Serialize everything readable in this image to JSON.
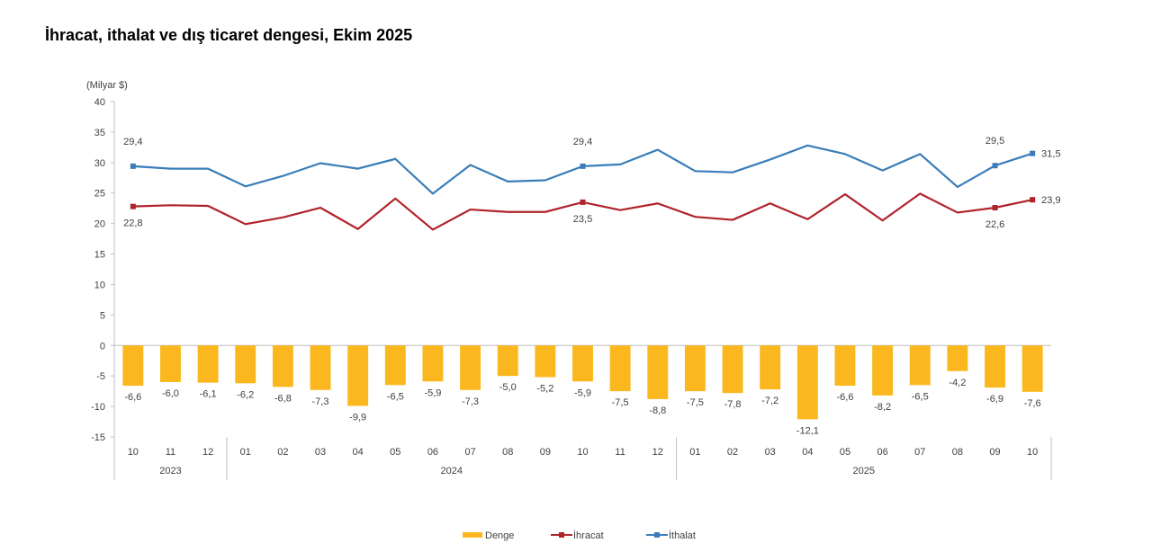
{
  "chart_data": {
    "type": "bar+line",
    "title": "İhracat, ithalat ve dış ticaret dengesi, Ekim 2025",
    "unit_label": "(Milyar $)",
    "ylim": [
      -15,
      40
    ],
    "yticks": [
      40,
      35,
      30,
      25,
      20,
      15,
      10,
      5,
      0,
      -5,
      -10,
      -15
    ],
    "grid": false,
    "legend_position": "bottom",
    "categories": [
      "10",
      "11",
      "12",
      "01",
      "02",
      "03",
      "04",
      "05",
      "06",
      "07",
      "08",
      "09",
      "10",
      "11",
      "12",
      "01",
      "02",
      "03",
      "04",
      "05",
      "06",
      "07",
      "08",
      "09",
      "10"
    ],
    "year_groups": [
      {
        "label": "2023",
        "count": 3
      },
      {
        "label": "2024",
        "count": 12
      },
      {
        "label": "2025",
        "count": 10
      }
    ],
    "series": [
      {
        "name": "Denge",
        "kind": "bar",
        "color": "#FBB81E",
        "values": [
          -6.6,
          -6.0,
          -6.1,
          -6.2,
          -6.8,
          -7.3,
          -9.9,
          -6.5,
          -5.9,
          -7.3,
          -5.0,
          -5.2,
          -5.9,
          -7.5,
          -8.8,
          -7.5,
          -7.8,
          -7.2,
          -12.1,
          -6.6,
          -8.2,
          -6.5,
          -4.2,
          -6.9,
          -7.6
        ],
        "labels": [
          "-6,6",
          "-6,0",
          "-6,1",
          "-6,2",
          "-6,8",
          "-7,3",
          "-9,9",
          "-6,5",
          "-5,9",
          "-7,3",
          "-5,0",
          "-5,2",
          "-5,9",
          "-7,5",
          "-8,8",
          "-7,5",
          "-7,8",
          "-7,2",
          "-12,1",
          "-6,6",
          "-8,2",
          "-6,5",
          "-4,2",
          "-6,9",
          "-7,6"
        ]
      },
      {
        "name": "İhracat",
        "kind": "line",
        "color": "#B0232A",
        "values": [
          22.8,
          23.0,
          22.9,
          19.9,
          21.0,
          22.6,
          19.1,
          24.1,
          19.0,
          22.3,
          21.9,
          21.9,
          23.5,
          22.2,
          23.3,
          21.1,
          20.6,
          23.3,
          20.7,
          24.8,
          20.5,
          24.9,
          21.8,
          22.6,
          23.9
        ],
        "point_labels": [
          {
            "index": 0,
            "text": "22,8"
          },
          {
            "index": 12,
            "text": "23,5"
          },
          {
            "index": 23,
            "text": "22,6"
          },
          {
            "index": 24,
            "text": "23,9"
          }
        ]
      },
      {
        "name": "İthalat",
        "kind": "line",
        "color": "#3A7DB8",
        "values": [
          29.4,
          29.0,
          29.0,
          26.1,
          27.8,
          29.9,
          29.0,
          30.6,
          24.9,
          29.6,
          26.9,
          27.1,
          29.4,
          29.7,
          32.1,
          28.6,
          28.4,
          30.5,
          32.8,
          31.4,
          28.7,
          31.4,
          26.0,
          29.5,
          31.5
        ],
        "point_labels": [
          {
            "index": 0,
            "text": "29,4"
          },
          {
            "index": 12,
            "text": "29,4"
          },
          {
            "index": 23,
            "text": "29,5"
          },
          {
            "index": 24,
            "text": "31,5"
          }
        ]
      }
    ]
  }
}
